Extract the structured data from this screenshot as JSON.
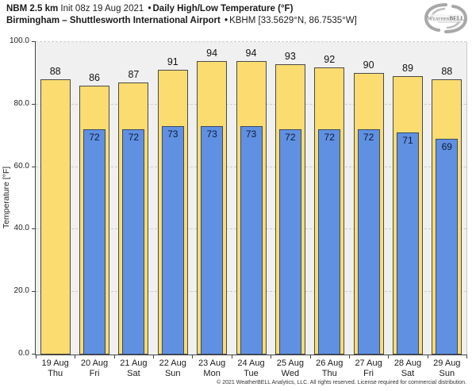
{
  "header": {
    "model": "NBM 2.5 km",
    "init": "Init 08z 19 Aug 2021",
    "separator": "•",
    "product": "Daily High/Low Temperature (°F)",
    "location": "Birmingham – Shuttlesworth International Airport",
    "station": "KBHM [33.5629°N, 86.7535°W]"
  },
  "logo": {
    "name": "weatherbell-logo",
    "text": "WeatherBELL",
    "subtext": "ANALYTICS"
  },
  "chart_data": {
    "type": "bar",
    "title": "Daily High/Low Temperature (°F)",
    "xlabel": "",
    "ylabel": "Temperature [°F]",
    "ylim": [
      0,
      100
    ],
    "ytick_labels": [
      "0.0",
      "20.0",
      "40.0",
      "60.0",
      "80.0",
      "100.0"
    ],
    "ytick_values": [
      0,
      20,
      40,
      60,
      80,
      100
    ],
    "grid": "horizontal-dashed",
    "legend": "none",
    "categories": [
      {
        "date": "19 Aug",
        "day": "Thu"
      },
      {
        "date": "20 Aug",
        "day": "Fri"
      },
      {
        "date": "21 Aug",
        "day": "Sat"
      },
      {
        "date": "22 Aug",
        "day": "Sun"
      },
      {
        "date": "23 Aug",
        "day": "Mon"
      },
      {
        "date": "24 Aug",
        "day": "Tue"
      },
      {
        "date": "25 Aug",
        "day": "Wed"
      },
      {
        "date": "26 Aug",
        "day": "Thu"
      },
      {
        "date": "27 Aug",
        "day": "Fri"
      },
      {
        "date": "28 Aug",
        "day": "Sat"
      },
      {
        "date": "29 Aug",
        "day": "Sun"
      }
    ],
    "series": [
      {
        "name": "Daily High",
        "color": "#fadc70",
        "values": [
          88,
          86,
          87,
          91,
          94,
          94,
          93,
          92,
          90,
          89,
          88
        ]
      },
      {
        "name": "Daily Low",
        "color": "#6090e2",
        "values": [
          null,
          72,
          72,
          73,
          73,
          73,
          72,
          72,
          72,
          71,
          69
        ]
      }
    ]
  },
  "footer": {
    "copyright": "© 2021 WeatherBELL Analytics, LLC. All rights reserved. License required for commercial distribution."
  }
}
